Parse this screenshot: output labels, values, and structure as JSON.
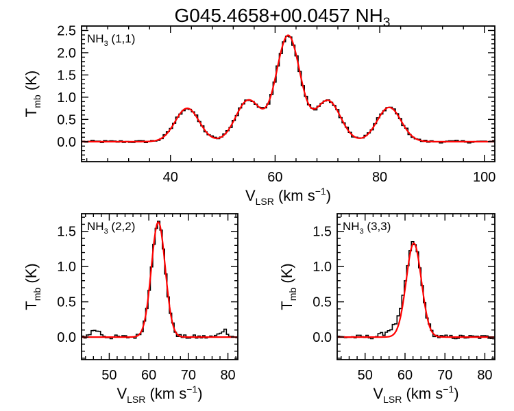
{
  "figure": {
    "title_main": "G045.4658+00.0457 NH",
    "title_sub": "3"
  },
  "chart_data": [
    {
      "type": "line",
      "panel": "NH3 (1,1)",
      "label_main": "NH",
      "label_sub": "3",
      "label_tail": " (1,1)",
      "xlabel_main": "V",
      "xlabel_sub": "LSR",
      "xlabel_tail": " (km s",
      "xlabel_sup": "−1",
      "xlabel_end": ")",
      "ylabel_main": "T",
      "ylabel_sub": "mb",
      "ylabel_tail": " (K)",
      "xlim": [
        23,
        102
      ],
      "ylim": [
        -0.45,
        2.6
      ],
      "xticks": [
        40,
        60,
        80,
        100
      ],
      "xtick_labels": [
        "40",
        "60",
        "80",
        "100"
      ],
      "yticks": [
        0.0,
        0.5,
        1.0,
        1.5,
        2.0,
        2.5
      ],
      "ytick_labels": [
        "0.0",
        "0.5",
        "1.0",
        "1.5",
        "2.0",
        "2.5"
      ],
      "series": [
        {
          "name": "Gaussian fit",
          "color": "#ff0000",
          "components": [
            {
              "center": 43.2,
              "amplitude": 0.75,
              "sigma": 2.3
            },
            {
              "center": 54.9,
              "amplitude": 0.93,
              "sigma": 2.4
            },
            {
              "center": 62.5,
              "amplitude": 2.38,
              "sigma": 2.3
            },
            {
              "center": 70.1,
              "amplitude": 0.92,
              "sigma": 2.4
            },
            {
              "center": 81.8,
              "amplitude": 0.77,
              "sigma": 2.3
            }
          ]
        },
        {
          "name": "Observed spectrum",
          "color": "#000000",
          "style": "histogram",
          "bin_width": 0.6,
          "noise": 0.03
        }
      ]
    },
    {
      "type": "line",
      "panel": "NH3 (2,2)",
      "label_main": "NH",
      "label_sub": "3",
      "label_tail": " (2,2)",
      "xlabel_main": "V",
      "xlabel_sub": "LSR",
      "xlabel_tail": " (km s",
      "xlabel_sup": "−1",
      "xlabel_end": ")",
      "ylabel_main": "T",
      "ylabel_sub": "mb",
      "ylabel_tail": " (K)",
      "xlim": [
        43,
        82.5
      ],
      "ylim": [
        -0.32,
        1.75
      ],
      "xticks": [
        50,
        60,
        70,
        80
      ],
      "xtick_labels": [
        "50",
        "60",
        "70",
        "80"
      ],
      "yticks": [
        0.0,
        0.5,
        1.0,
        1.5
      ],
      "ytick_labels": [
        "0.0",
        "0.5",
        "1.0",
        "1.5"
      ],
      "series": [
        {
          "name": "Gaussian fit",
          "color": "#ff0000",
          "components": [
            {
              "center": 62.4,
              "amplitude": 1.63,
              "sigma": 1.75
            }
          ]
        },
        {
          "name": "Observed spectrum",
          "color": "#000000",
          "style": "histogram",
          "bin_width": 0.6,
          "noise": 0.03,
          "extra_components": [
            {
              "center": 46.5,
              "amplitude": 0.1,
              "sigma": 1.2
            },
            {
              "center": 79.0,
              "amplitude": 0.1,
              "sigma": 1.0
            }
          ]
        }
      ]
    },
    {
      "type": "line",
      "panel": "NH3 (3,3)",
      "label_main": "NH",
      "label_sub": "3",
      "label_tail": " (3,3)",
      "xlabel_main": "V",
      "xlabel_sub": "LSR",
      "xlabel_tail": " (km s",
      "xlabel_sup": "−1",
      "xlabel_end": ")",
      "ylabel_main": "T",
      "ylabel_sub": "mb",
      "ylabel_tail": " (K)",
      "xlim": [
        43,
        82.5
      ],
      "ylim": [
        -0.32,
        1.75
      ],
      "xticks": [
        50,
        60,
        70,
        80
      ],
      "xtick_labels": [
        "50",
        "60",
        "70",
        "80"
      ],
      "yticks": [
        0.0,
        0.5,
        1.0,
        1.5
      ],
      "ytick_labels": [
        "0.0",
        "0.5",
        "1.0",
        "1.5"
      ],
      "series": [
        {
          "name": "Gaussian fit",
          "color": "#ff0000",
          "components": [
            {
              "center": 62.2,
              "amplitude": 1.33,
              "sigma": 1.9
            }
          ]
        },
        {
          "name": "Observed spectrum",
          "color": "#000000",
          "style": "histogram",
          "bin_width": 0.6,
          "noise": 0.03,
          "extra_components": [
            {
              "center": 57.5,
              "amplitude": 0.12,
              "sigma": 2.2
            }
          ]
        }
      ]
    }
  ]
}
